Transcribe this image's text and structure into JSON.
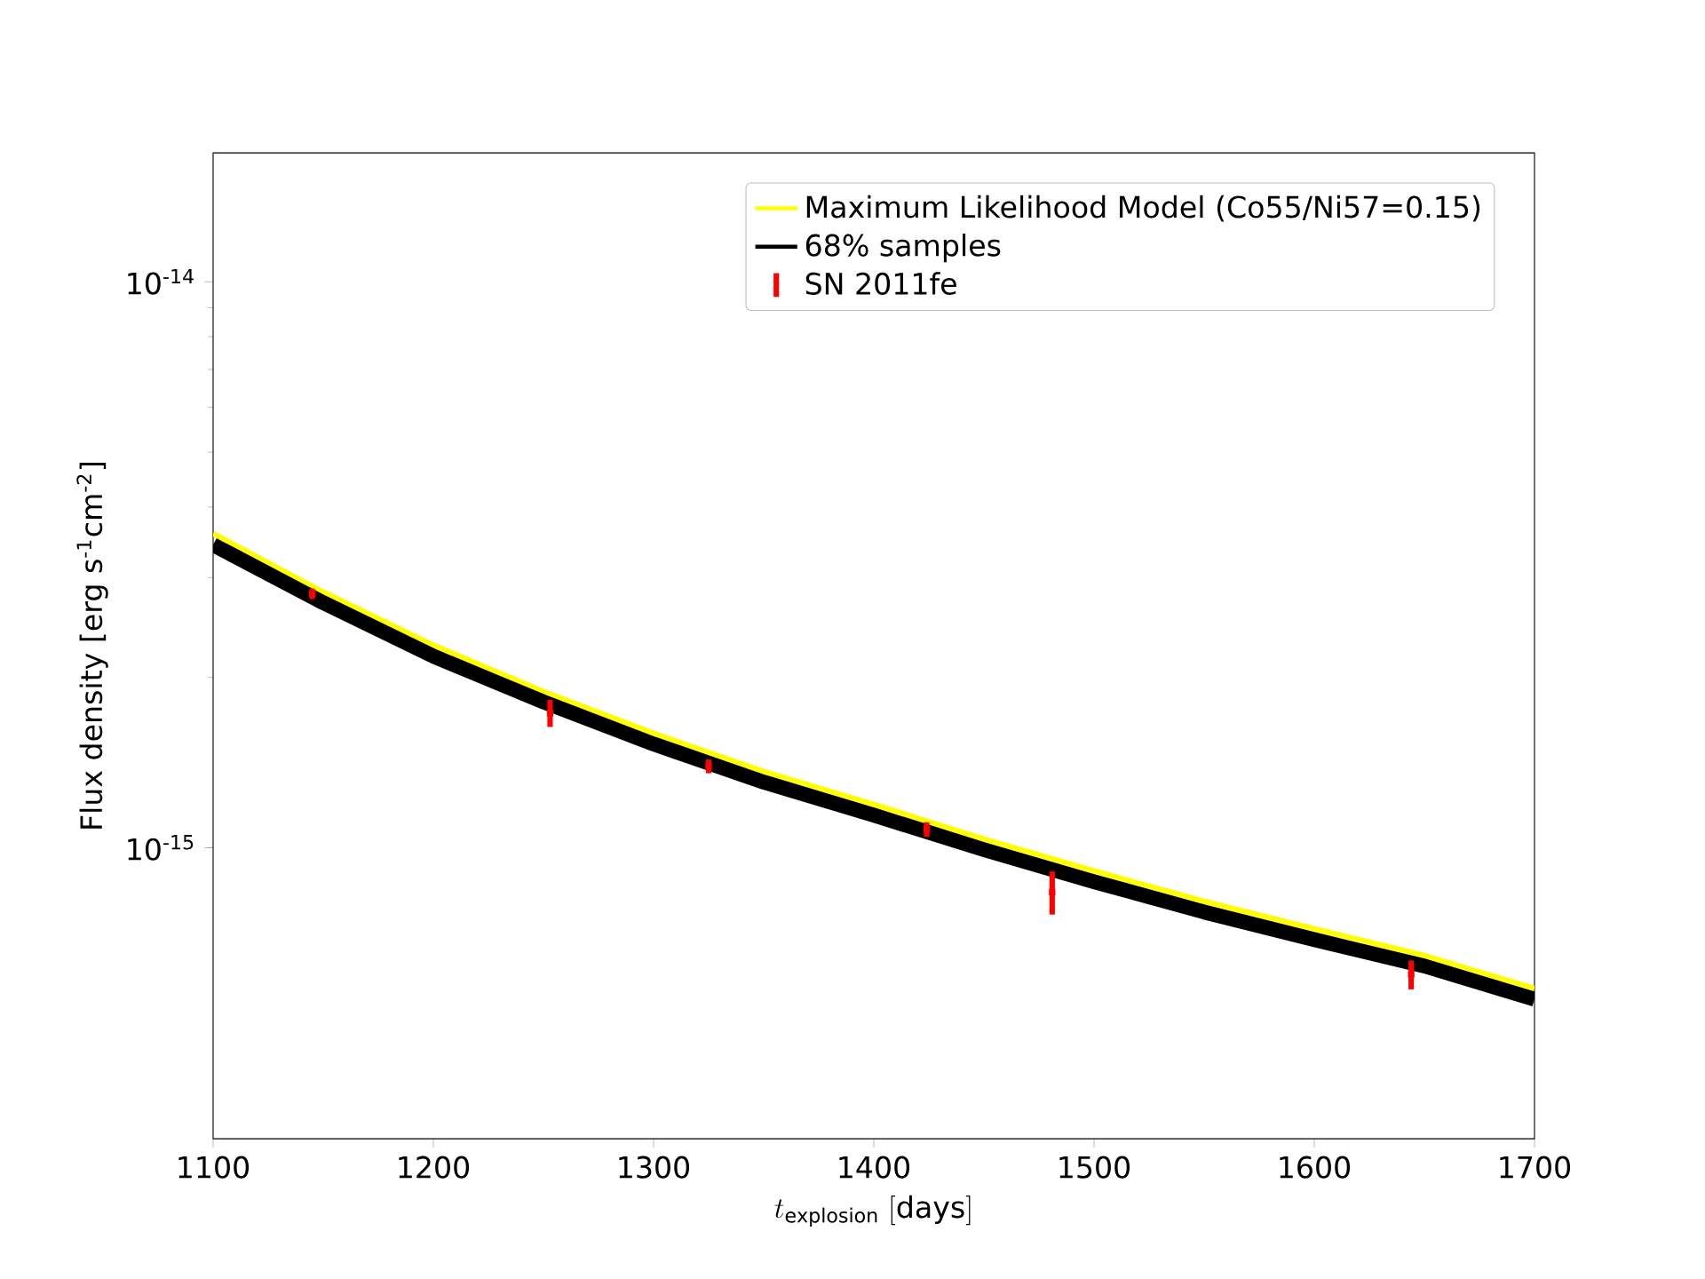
{
  "chart_data": {
    "type": "line",
    "xlabel": "t_{\\mathrm{explosion}}\\;[\\mathrm{days}]",
    "ylabel": "Flux density [erg s$^{-1}$cm$^{-2}$]",
    "log": "y",
    "legend": "top right",
    "xlim": [
      1100,
      1700
    ],
    "xticks": [
      1100,
      1200,
      1300,
      1400,
      1500,
      1600,
      1700
    ],
    "ylim": [
      3.06e-16,
      1.69e-14
    ],
    "yticks": [
      {
        "value": 1e-15,
        "label": "10$^{-15}$"
      },
      {
        "value": 1e-14,
        "label": "10$^{-14}$"
      }
    ],
    "series": [
      {
        "name": "Maximum Likelihood Model (Co55/Ni57=0.15)",
        "color": "#ffff00",
        "x": [
          1100,
          1150,
          1200,
          1250,
          1300,
          1350,
          1400,
          1450,
          1500,
          1550,
          1600,
          1650,
          1700
        ],
        "values": [
          3.59e-15,
          2.83e-15,
          2.28e-15,
          1.888e-15,
          1.593e-15,
          1.364e-15,
          1.193e-15,
          1.036e-15,
          9.1e-16,
          8.04e-16,
          7.19e-16,
          6.45e-16,
          5.64e-16
        ]
      },
      {
        "name": "68% samples",
        "color": "#000000",
        "x": [
          1100,
          1150,
          1200,
          1250,
          1300,
          1350,
          1400,
          1450,
          1500,
          1550,
          1600,
          1650,
          1700
        ],
        "values": [
          3.43e-15,
          2.71e-15,
          2.18e-15,
          1.81e-15,
          1.525e-15,
          1.306e-15,
          1.142e-15,
          9.92e-16,
          8.71e-16,
          7.7e-16,
          6.88e-16,
          6.18e-16,
          5.4e-16
        ]
      },
      {
        "name": "SN 2011fe",
        "type": "scatter",
        "color": "#ff0000",
        "x": [
          1145,
          1253,
          1325,
          1424,
          1481,
          1644
        ],
        "values": [
          2.81e-15,
          1.73e-15,
          1.393e-15,
          1.077e-15,
          8.35e-16,
          5.97e-16
        ],
        "errors": [
          6e-17,
          9.5e-17,
          3.9e-17,
          3.2e-17,
          7.3e-17,
          3.5e-17
        ]
      }
    ]
  }
}
